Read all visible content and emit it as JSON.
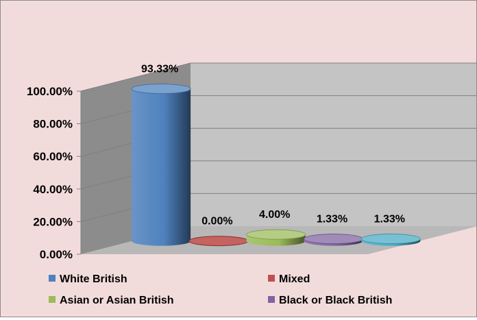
{
  "chart_data": {
    "type": "bar",
    "style": "3d-cylinder",
    "categories": [
      "White British",
      "Mixed",
      "Asian or Asian British",
      "Black or Black British",
      ""
    ],
    "values": [
      93.33,
      0.0,
      4.0,
      1.33,
      1.33
    ],
    "data_labels": [
      "93.33%",
      "0.00%",
      "4.00%",
      "1.33%",
      "1.33%"
    ],
    "ylim": [
      0,
      100
    ],
    "yticks": [
      "0.00%",
      "20.00%",
      "40.00%",
      "60.00%",
      "80.00%",
      "100.00%"
    ],
    "grid": true,
    "legend_position": "bottom",
    "legend": [
      {
        "label": "White British",
        "color": "#4f81bd"
      },
      {
        "label": "Mixed",
        "color": "#c0504d"
      },
      {
        "label": "Asian or Asian British",
        "color": "#9bbb59"
      },
      {
        "label": "Black or Black British",
        "color": "#8064a2"
      }
    ],
    "colors": [
      "#4f81bd",
      "#c0504d",
      "#9bbb59",
      "#8064a2",
      "#4bacc6"
    ],
    "background": "#f2dcdb"
  }
}
